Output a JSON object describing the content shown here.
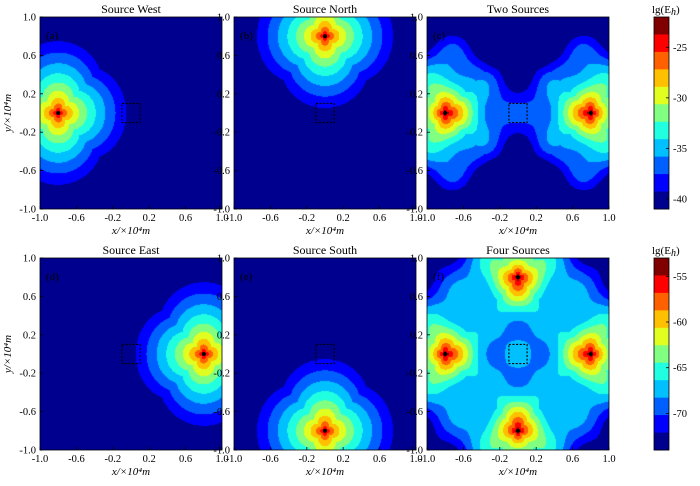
{
  "chart_data": {
    "type": "heatmap",
    "x_label": "x/×10⁴m",
    "y_label": "y/×10⁴m",
    "x_ticks": [
      "-1.0",
      "-0.6",
      "-0.2",
      "0.2",
      "0.6",
      "1.0"
    ],
    "y_ticks": [
      "1.0",
      "0.6",
      "0.2",
      "-0.2",
      "-0.6",
      "-1.0"
    ],
    "xlim": [
      -1.0,
      1.0
    ],
    "ylim": [
      -1.0,
      1.0
    ],
    "target_box": {
      "x": [
        -0.1,
        0.1
      ],
      "y": [
        -0.1,
        0.1
      ]
    },
    "panels": [
      {
        "label": "(a)",
        "title": "Source West",
        "sources": [
          {
            "x": -0.8,
            "y": 0.0
          }
        ],
        "group": 0
      },
      {
        "label": "(b)",
        "title": "Source North",
        "sources": [
          {
            "x": 0.0,
            "y": 0.8
          }
        ],
        "group": 0
      },
      {
        "label": "(c)",
        "title": "Two Sources",
        "sources": [
          {
            "x": -0.8,
            "y": 0.0
          },
          {
            "x": 0.8,
            "y": 0.0
          }
        ],
        "group": 0
      },
      {
        "label": "(d)",
        "title": "Source East",
        "sources": [
          {
            "x": 0.8,
            "y": 0.0
          }
        ],
        "group": 1
      },
      {
        "label": "(e)",
        "title": "Source South",
        "sources": [
          {
            "x": 0.0,
            "y": -0.8
          }
        ],
        "group": 1
      },
      {
        "label": "(f)",
        "title": "Four Sources",
        "sources": [
          {
            "x": -0.8,
            "y": 0.0
          },
          {
            "x": 0.8,
            "y": 0.0
          },
          {
            "x": 0.0,
            "y": 0.8
          },
          {
            "x": 0.0,
            "y": -0.8
          }
        ],
        "group": 1
      }
    ],
    "colorbars": [
      {
        "title": "lg(E",
        "title_sub": "h",
        "title_end": ")",
        "ticks": [
          "-25",
          "-30",
          "-35",
          "-40"
        ],
        "range": [
          -41,
          -22
        ]
      },
      {
        "title": "lg(E",
        "title_sub": "h",
        "title_end": ")",
        "ticks": [
          "-55",
          "-60",
          "-65",
          "-70"
        ],
        "range": [
          -74,
          -53
        ]
      }
    ],
    "colormap": [
      "#00008f",
      "#0000ff",
      "#0060ff",
      "#00c0ff",
      "#20ffe0",
      "#80ff80",
      "#e0ff20",
      "#ffc000",
      "#ff6000",
      "#ff0000",
      "#800000"
    ]
  }
}
